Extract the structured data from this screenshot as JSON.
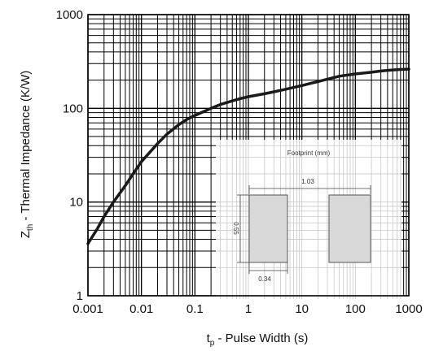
{
  "chart_data": {
    "type": "line",
    "title": "",
    "xscale": "log",
    "yscale": "log",
    "xlim": [
      0.001,
      1000
    ],
    "ylim": [
      1,
      1000
    ],
    "grid": true,
    "x_ticks": [
      {
        "value": 0.001,
        "label": "0.001"
      },
      {
        "value": 0.01,
        "label": "0.01"
      },
      {
        "value": 0.1,
        "label": "0.1"
      },
      {
        "value": 1,
        "label": "1"
      },
      {
        "value": 10,
        "label": "10"
      },
      {
        "value": 100,
        "label": "100"
      },
      {
        "value": 1000,
        "label": "1000"
      }
    ],
    "y_ticks": [
      {
        "value": 1,
        "label": "1"
      },
      {
        "value": 10,
        "label": "10"
      },
      {
        "value": 100,
        "label": "100"
      },
      {
        "value": 1000,
        "label": "1000"
      }
    ],
    "xlabel": {
      "main": "t",
      "sub": "p",
      "rest": " - Pulse Width (s)"
    },
    "ylabel": {
      "main": "Z",
      "sub": "th",
      "rest": " - Thermal Impedance (K/W)"
    },
    "series": [
      {
        "x": [
          0.001,
          0.0015,
          0.002,
          0.003,
          0.005,
          0.007,
          0.01,
          0.02,
          0.03,
          0.05,
          0.07,
          0.1,
          0.15,
          0.2,
          0.3,
          0.5,
          0.7,
          1,
          2,
          3,
          5,
          10,
          20,
          30,
          50,
          100,
          200,
          300,
          500,
          700,
          1000
        ],
        "y": [
          3.6,
          5.2,
          7.0,
          10.0,
          15.0,
          20.0,
          27.0,
          42.0,
          53.0,
          67.0,
          76.0,
          84.0,
          93.0,
          100.0,
          110.0,
          120.0,
          127.0,
          133.0,
          143.0,
          150.0,
          160.0,
          175.0,
          193.0,
          205.0,
          220.0,
          233.0,
          243.0,
          250.0,
          257.0,
          260.0,
          262.0
        ]
      }
    ],
    "inset": {
      "title": "Footprint (mm)",
      "dim_spacing": "1.03",
      "dim_height": "0.55",
      "dim_width": "0.34"
    }
  }
}
